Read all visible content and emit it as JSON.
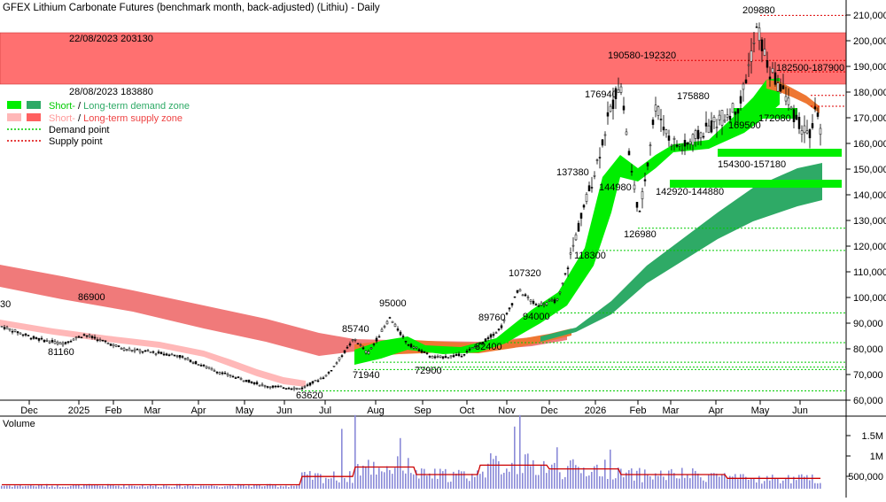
{
  "title": "GFEX Lithium Carbonate Futures (benchmark month, back-adjusted) (Lithiu) - Daily",
  "legend": [
    {
      "label_a": "Short-",
      "sep": " / ",
      "label_b": "Long-term demand zone",
      "color_a": "#00ee00",
      "color_b": "#2eaa66"
    },
    {
      "label_a": "Short-",
      "sep": " / ",
      "label_b": "Long-term supply zone",
      "color_a": "#ffb0b0",
      "color_b": "#ff5a5a"
    },
    {
      "label": "Demand point",
      "color": "#00cc00"
    },
    {
      "label": "Supply point",
      "color": "#dd0000"
    }
  ],
  "colors": {
    "demand_short": "#00ee00",
    "demand_long": "#2eaa66",
    "supply_short": "#ffb0b0",
    "supply_long": "#ff6060",
    "mixed_zone": "#ee7733",
    "supply_point": "#dd0000",
    "demand_point": "#00cc00",
    "volume_bar": "#8a8ad8",
    "volume_ma": "#cc0000"
  },
  "chart_data": {
    "type": "candlestick",
    "x_ticks": [
      "Dec",
      "2025",
      "Feb",
      "Mar",
      "Apr",
      "May",
      "Jun",
      "Jul",
      "Aug",
      "Sep",
      "Oct",
      "Nov",
      "Dec",
      "2026",
      "Feb",
      "Mar",
      "Apr",
      "May",
      "Jun"
    ],
    "y_ticks": [
      "60,000",
      "70,000",
      "80,000",
      "90,000",
      "100,000",
      "110,000",
      "120,000",
      "130,000",
      "140,000",
      "150,000",
      "160,000",
      "170,000",
      "180,000",
      "190,000",
      "200,000",
      "210,000"
    ],
    "ylim": [
      56000,
      212000
    ],
    "volume_ticks": [
      "1.5M",
      "1M",
      "500,000"
    ],
    "zone_labels": [
      {
        "text": "22/08/2023 203130",
        "value": 203130
      },
      {
        "text": "28/08/2023 183880",
        "value": 183880
      }
    ],
    "supply_points": [
      209880,
      192320,
      187900
    ],
    "demand_points": [
      63620,
      71940,
      72900,
      74800,
      82400,
      94000,
      118300,
      126980
    ],
    "annotations": [
      {
        "text": "209880",
        "x": "May",
        "y": 209880
      },
      {
        "text": "190580-192320",
        "x": "Feb",
        "y": 192320
      },
      {
        "text": "182500-187900",
        "x": "May",
        "y": 187900
      },
      {
        "text": "176940",
        "x": "2026",
        "y": 176940
      },
      {
        "text": "175880",
        "x": "Apr",
        "y": 175880
      },
      {
        "text": "172080",
        "x": "May",
        "y": 172080
      },
      {
        "text": "169500",
        "x": "Apr",
        "y": 169500
      },
      {
        "text": "154300-157180",
        "x": "Apr",
        "y": 157180
      },
      {
        "text": "144980",
        "x": "2026",
        "y": 144980
      },
      {
        "text": "142920-144880",
        "x": "Mar",
        "y": 144880
      },
      {
        "text": "137380",
        "x": "2026",
        "y": 137380
      },
      {
        "text": "126980",
        "x": "Feb",
        "y": 126980
      },
      {
        "text": "118300",
        "x": "2026",
        "y": 118300
      },
      {
        "text": "107320",
        "x": "Nov",
        "y": 107320
      },
      {
        "text": "95000",
        "x": "Aug",
        "y": 95000
      },
      {
        "text": "94000",
        "x": "Dec",
        "y": 94000
      },
      {
        "text": "89760",
        "x": "Oct",
        "y": 89760
      },
      {
        "text": "86900",
        "x": "Feb",
        "y": 86900
      },
      {
        "text": "85740",
        "x": "Jul",
        "y": 85740
      },
      {
        "text": "82400",
        "x": "Oct",
        "y": 82400
      },
      {
        "text": "81160",
        "x": "2025",
        "y": 81160
      },
      {
        "text": "72900",
        "x": "Sep",
        "y": 72900
      },
      {
        "text": "71940",
        "x": "Jul",
        "y": 71940
      },
      {
        "text": "63620",
        "x": "Jun",
        "y": 63620
      },
      {
        "text": "30",
        "x": "Dec",
        "y": 90000
      }
    ],
    "volume_label": "Volume"
  }
}
